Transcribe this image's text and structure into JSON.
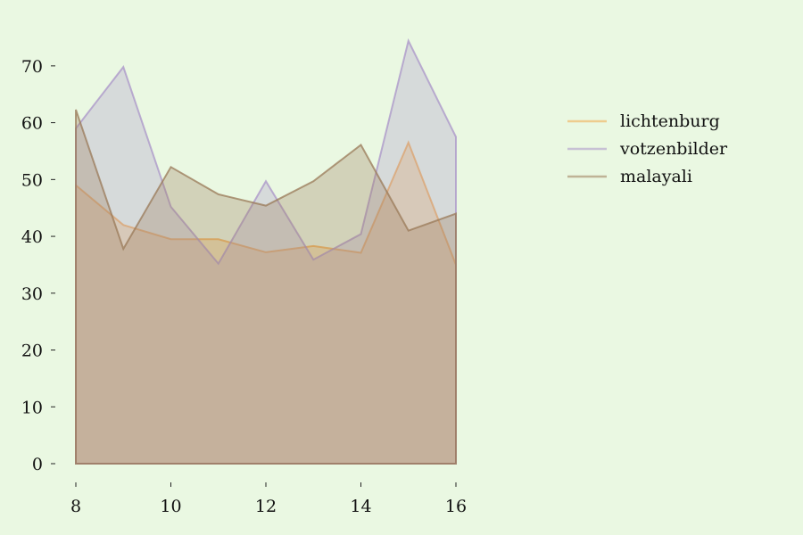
{
  "chart_data": {
    "type": "area",
    "x": [
      8,
      9,
      10,
      11,
      12,
      13,
      14,
      15,
      16
    ],
    "series": [
      {
        "name": "lichtenburg",
        "color": "#f0a848",
        "values": [
          49.0,
          42.0,
          39.5,
          39.5,
          37.2,
          38.3,
          37.1,
          56.5,
          35.0
        ]
      },
      {
        "name": "votzenbilder",
        "color": "#a994c8",
        "values": [
          59.0,
          69.8,
          45.2,
          35.2,
          49.7,
          35.9,
          40.4,
          74.4,
          57.5
        ]
      },
      {
        "name": "malayali",
        "color": "#9a7a58",
        "values": [
          62.3,
          37.8,
          52.2,
          47.4,
          45.4,
          49.7,
          56.1,
          41.0,
          44.0
        ]
      }
    ],
    "xticks": [
      8,
      10,
      12,
      14,
      16
    ],
    "yticks": [
      0,
      10,
      20,
      30,
      40,
      50,
      60,
      70
    ],
    "xlim": [
      8,
      16
    ],
    "ylim": [
      0,
      75
    ],
    "xlabel": "",
    "ylabel": "",
    "title": "",
    "grid": false,
    "legend_position": "right"
  }
}
